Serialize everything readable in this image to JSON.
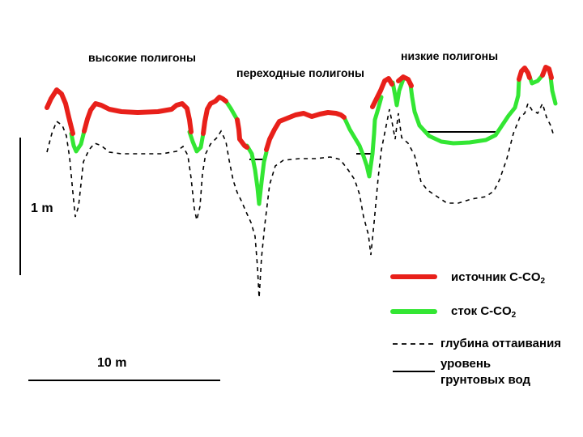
{
  "headers": {
    "high": "высокие полигоны",
    "transitional": "переходные полигоны",
    "low": "низкие полигоны"
  },
  "scale": {
    "vertical": "1 m",
    "horizontal": "10 m"
  },
  "legend": {
    "source": "источник C-CO",
    "source_sub": "2",
    "sink": "сток C-CO",
    "sink_sub": "2",
    "thaw_depth": "глубина оттаивания",
    "water_level_1": "уровень",
    "water_level_2": "грунтовых вод"
  },
  "colors": {
    "source": "#e8201a",
    "sink": "#33e633",
    "thaw": "#000000",
    "water": "#000000"
  }
}
